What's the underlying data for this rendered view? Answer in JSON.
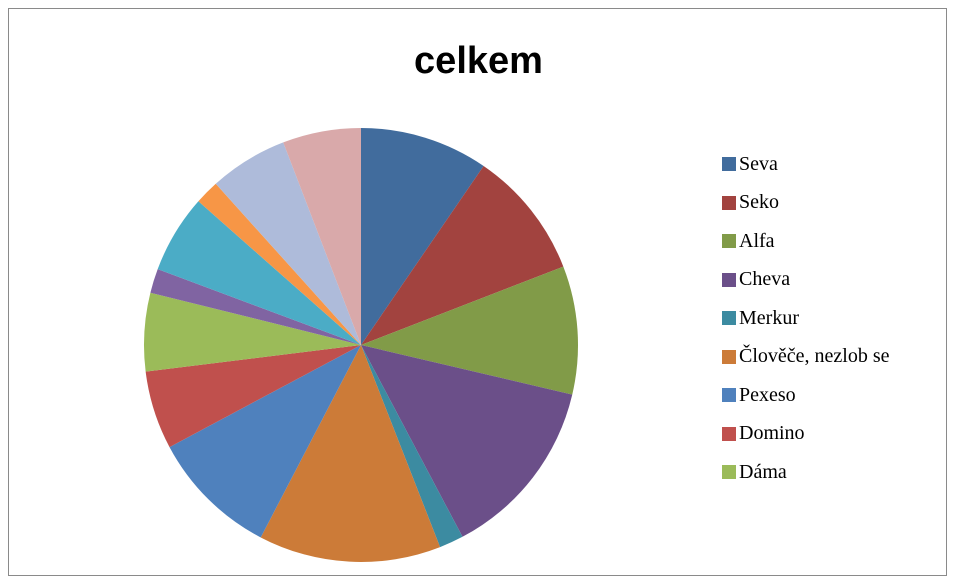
{
  "chart_data": {
    "type": "pie",
    "title": "celkem",
    "legend_position": "right",
    "slices": [
      {
        "label": "Seva",
        "value": 9.5,
        "color": "#416C9D"
      },
      {
        "label": "Seko",
        "value": 9.5,
        "color": "#A2433F"
      },
      {
        "label": "Alfa",
        "value": 9.5,
        "color": "#819B48"
      },
      {
        "label": "Cheva",
        "value": 13.5,
        "color": "#6B4F89"
      },
      {
        "label": "Merkur",
        "value": 1.8,
        "color": "#3C8BA1"
      },
      {
        "label": "Člověče, nezlob se",
        "value": 13.5,
        "color": "#CC7B38"
      },
      {
        "label": "Pexeso",
        "value": 9.5,
        "color": "#4F81BD"
      },
      {
        "label": "Domino",
        "value": 5.8,
        "color": "#C0504D"
      },
      {
        "label": "Dáma",
        "value": 5.8,
        "color": "#9BBB59"
      },
      {
        "label": "",
        "value": 1.8,
        "color": "#8064A2"
      },
      {
        "label": "",
        "value": 5.8,
        "color": "#4BACC6"
      },
      {
        "label": "",
        "value": 1.8,
        "color": "#F79646"
      },
      {
        "label": "",
        "value": 5.8,
        "color": "#AEBBDA"
      },
      {
        "label": "",
        "value": 5.8,
        "color": "#D9A9AA"
      }
    ],
    "legend": [
      "Seva",
      "Seko",
      "Alfa",
      "Cheva",
      "Merkur",
      "Člověče, nezlob se",
      "Pexeso",
      "Domino",
      "Dáma"
    ]
  }
}
